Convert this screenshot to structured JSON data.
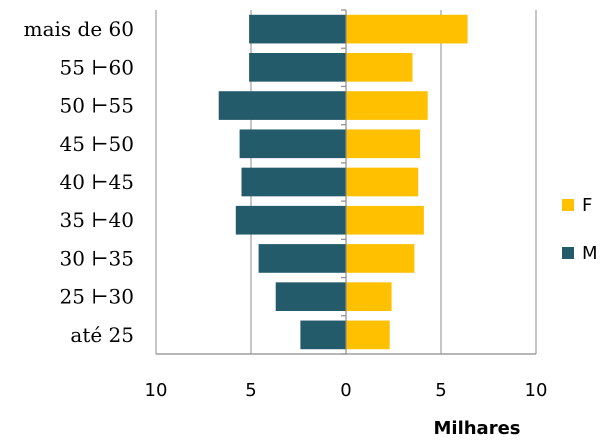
{
  "chart_data": {
    "type": "bar",
    "orientation": "horizontal",
    "layout": "population-pyramid",
    "categories": [
      "mais de 60",
      "55 ⊢60",
      "50 ⊢55",
      "45 ⊢50",
      "40 ⊢45",
      "35 ⊢40",
      "30 ⊢35",
      "25 ⊢30",
      "até 25"
    ],
    "series": [
      {
        "name": "F",
        "color": "#ffc000",
        "side": "right",
        "values": [
          6.4,
          3.5,
          4.3,
          3.9,
          3.8,
          4.1,
          3.6,
          2.4,
          2.3
        ]
      },
      {
        "name": "M",
        "color": "#245b6a",
        "side": "left",
        "values": [
          5.1,
          5.1,
          6.7,
          5.6,
          5.5,
          5.8,
          4.6,
          3.7,
          2.4
        ]
      }
    ],
    "xlabel": "Milhares",
    "ylabel": "",
    "xlim": [
      -10,
      10
    ],
    "xticks": [
      {
        "value": -10,
        "label": "10"
      },
      {
        "value": -5,
        "label": "5"
      },
      {
        "value": 0,
        "label": "0"
      },
      {
        "value": 5,
        "label": "5"
      },
      {
        "value": 10,
        "label": "10"
      }
    ],
    "grid": "vertical",
    "legend": {
      "position": "right",
      "entries": [
        "F",
        "M"
      ]
    }
  }
}
